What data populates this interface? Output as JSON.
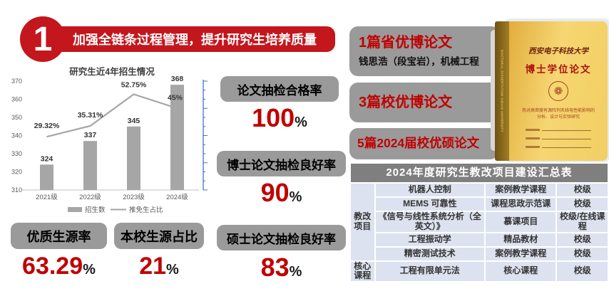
{
  "slide": {
    "section_number": "1",
    "title": "加强全链条过程管理，提升研究生培养质量"
  },
  "chart_data": {
    "type": "bar+line",
    "title": "研究生近4年招生情况",
    "categories": [
      "2021级",
      "2022级",
      "2023级",
      "2024级"
    ],
    "series": [
      {
        "name": "招生数",
        "type": "bar",
        "values": [
          324,
          337,
          345,
          368
        ]
      },
      {
        "name": "推免生占比",
        "type": "line",
        "values_pct": [
          29.32,
          35.31,
          52.75,
          45
        ],
        "labels": [
          "29.32%",
          "35.31%",
          "52.75%",
          "45%"
        ]
      }
    ],
    "ylim": [
      310,
      370
    ],
    "yticks": [
      310,
      320,
      330,
      340,
      350,
      360,
      370
    ],
    "legend_position": "bottom",
    "secondary_axis": true
  },
  "stats": [
    {
      "label": "论文抽检合格率",
      "value": "100",
      "unit": "%"
    },
    {
      "label": "博士论文抽检良好率",
      "value": "90",
      "unit": "%"
    },
    {
      "label": "硕士论文抽检良好率",
      "value": "83",
      "unit": "%"
    },
    {
      "label": "优质生源率",
      "value": "63.29",
      "unit": "%"
    },
    {
      "label": "本校生源占比",
      "value": "21",
      "unit": "%"
    }
  ],
  "awards": [
    {
      "title": "1篇省优博论文",
      "subtitle": "钱思浩（段宝岩），机械工程"
    },
    {
      "title": "3篇校优博论文",
      "subtitle": ""
    },
    {
      "title": "5篇2024届校优硕论文",
      "subtitle": ""
    }
  ],
  "book": {
    "spine_text": "DOCTORAL DISSERTATION XIDIAN UNIVERSITY",
    "university": "西安电子科技大学",
    "title": "博士学位论文",
    "thesis_line1": "热对高密度有源阵列天线电性能影响的",
    "thesis_line2": "分析、设计与实验研究",
    "emblem": "❁"
  },
  "table": {
    "title": "2024年度研究生教改项目建设汇总表",
    "groups": [
      {
        "label": "教改项目",
        "rows": [
          [
            "机器人控制",
            "案例教学课程",
            "校级"
          ],
          [
            "MEMS 可靠性",
            "课程思政示范课",
            "校级"
          ],
          [
            "《信号与线性系统分析（全英文）》",
            "慕课项目",
            "校级/在线课程"
          ],
          [
            "工程振动学",
            "精品教材",
            "校级"
          ],
          [
            "精密测试技术",
            "案例教学课程",
            "校级"
          ]
        ]
      },
      {
        "label": "核心课程",
        "rows": [
          [
            "工程有限单元法",
            "核心课程",
            "校级"
          ]
        ]
      }
    ]
  }
}
